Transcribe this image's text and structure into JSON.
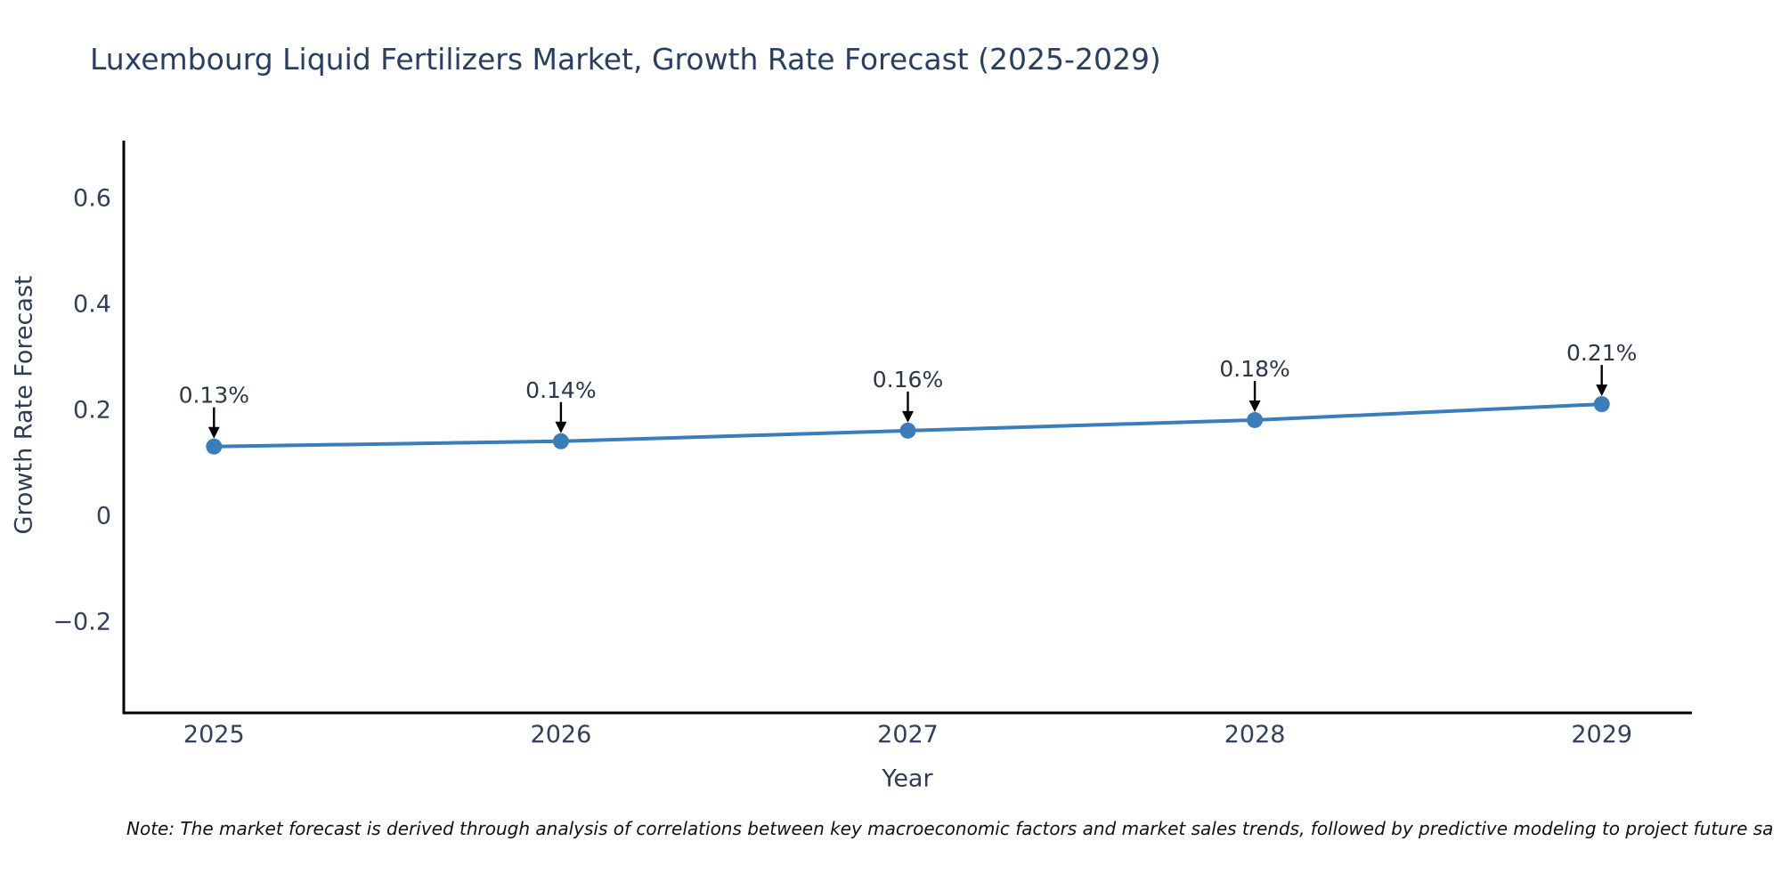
{
  "title": "Luxembourg Liquid Fertilizers Market, Growth Rate Forecast (2025-2029)",
  "note": "Note: The market forecast is derived through analysis of correlations between key macroeconomic factors and market sales trends, followed by predictive modeling to project future sa",
  "colors": {
    "title_text": "#2a3f5f",
    "tick_text": "#33405a",
    "annotation_text": "#2b3648",
    "note_text": "#111111",
    "axis_line": "#000000",
    "arrow": "#000000",
    "background": "#ffffff"
  },
  "chart_data": {
    "type": "line",
    "title": "Luxembourg Liquid Fertilizers Market, Growth Rate Forecast (2025-2029)",
    "xlabel": "Year",
    "ylabel": "Growth Rate Forecast",
    "x": [
      2025,
      2026,
      2027,
      2028,
      2029
    ],
    "values": [
      0.13,
      0.14,
      0.16,
      0.18,
      0.21
    ],
    "point_labels": [
      "0.13%",
      "0.14%",
      "0.16%",
      "0.18%",
      "0.21%"
    ],
    "series_name": "Growth Rate Forecast",
    "xticks": [
      {
        "v": 2025,
        "label": "2025"
      },
      {
        "v": 2026,
        "label": "2026"
      },
      {
        "v": 2027,
        "label": "2027"
      },
      {
        "v": 2028,
        "label": "2028"
      },
      {
        "v": 2029,
        "label": "2029"
      }
    ],
    "yticks": [
      {
        "v": -0.2,
        "label": "−0.2"
      },
      {
        "v": 0,
        "label": "0"
      },
      {
        "v": 0.2,
        "label": "0.2"
      },
      {
        "v": 0.4,
        "label": "0.4"
      },
      {
        "v": 0.6,
        "label": "0.6"
      }
    ],
    "xlim": [
      2024.74,
      2029.26
    ],
    "ylim": [
      -0.373,
      0.706
    ],
    "grid": false,
    "legend": false,
    "line_color": "#3b7cba",
    "marker_color": "#3b7cba",
    "line_width": 4,
    "marker_radius": 9
  }
}
